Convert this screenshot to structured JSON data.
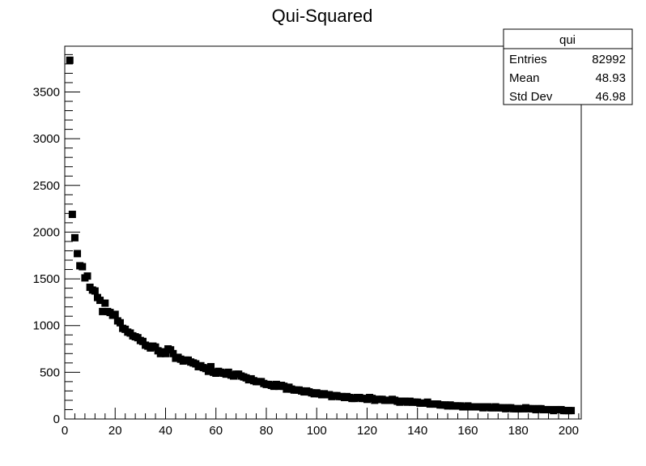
{
  "chart_data": {
    "type": "scatter",
    "title": "Qui-Squared",
    "xlabel": "",
    "ylabel": "",
    "xlim": [
      0,
      205
    ],
    "ylim": [
      0,
      3990
    ],
    "x_ticks": [
      0,
      20,
      40,
      60,
      80,
      100,
      120,
      140,
      160,
      180,
      200
    ],
    "y_ticks": [
      0,
      500,
      1000,
      1500,
      2000,
      2500,
      3000,
      3500
    ],
    "marker": "square",
    "marker_color": "#000000",
    "grid": false,
    "series": [
      {
        "x": [
          2,
          3,
          4,
          5,
          6,
          7,
          8,
          9,
          10,
          11,
          12,
          13,
          14,
          15,
          16,
          17,
          18,
          19,
          20,
          21,
          22,
          23,
          24,
          25,
          26,
          27,
          28,
          29,
          30,
          31,
          32,
          33,
          34,
          35,
          36,
          37,
          38,
          39,
          40,
          41,
          42,
          43,
          44,
          45,
          46,
          47,
          48,
          49,
          50,
          51,
          52,
          53,
          54,
          55,
          56,
          57,
          58,
          59,
          60,
          61,
          62,
          63,
          64,
          65,
          66,
          67,
          68,
          69,
          70,
          71,
          72,
          73,
          74,
          75,
          76,
          77,
          78,
          79,
          80,
          81,
          82,
          83,
          84,
          85,
          86,
          87,
          88,
          89,
          90,
          91,
          92,
          93,
          94,
          95,
          96,
          97,
          98,
          99,
          100,
          101,
          102,
          103,
          104,
          105,
          106,
          107,
          108,
          109,
          110,
          111,
          112,
          113,
          114,
          115,
          116,
          117,
          118,
          119,
          120,
          121,
          122,
          123,
          124,
          125,
          126,
          127,
          128,
          129,
          130,
          131,
          132,
          133,
          134,
          135,
          136,
          137,
          138,
          139,
          140,
          141,
          142,
          143,
          144,
          145,
          146,
          147,
          148,
          149,
          150,
          151,
          152,
          153,
          154,
          155,
          156,
          157,
          158,
          159,
          160,
          161,
          162,
          163,
          164,
          165,
          166,
          167,
          168,
          169,
          170,
          171,
          172,
          173,
          174,
          175,
          176,
          177,
          178,
          179,
          180,
          181,
          182,
          183,
          184,
          185,
          186,
          187,
          188,
          189,
          190,
          191,
          192,
          193,
          194,
          195,
          196,
          197,
          198,
          199,
          200,
          201
        ],
        "values": [
          3840,
          2190,
          1940,
          1770,
          1640,
          1630,
          1510,
          1530,
          1410,
          1380,
          1370,
          1300,
          1270,
          1150,
          1240,
          1150,
          1140,
          1110,
          1120,
          1050,
          1030,
          970,
          960,
          930,
          920,
          890,
          880,
          870,
          840,
          830,
          790,
          780,
          760,
          780,
          770,
          730,
          700,
          720,
          700,
          750,
          740,
          700,
          650,
          660,
          640,
          620,
          630,
          630,
          610,
          600,
          590,
          560,
          570,
          550,
          540,
          510,
          560,
          500,
          490,
          510,
          500,
          490,
          480,
          500,
          470,
          460,
          480,
          480,
          460,
          450,
          440,
          420,
          430,
          410,
          400,
          400,
          400,
          380,
          370,
          370,
          360,
          350,
          370,
          350,
          360,
          350,
          320,
          340,
          320,
          310,
          310,
          310,
          300,
          290,
          300,
          290,
          280,
          270,
          280,
          270,
          260,
          270,
          260,
          260,
          240,
          250,
          250,
          240,
          240,
          230,
          240,
          230,
          220,
          220,
          230,
          230,
          220,
          220,
          210,
          230,
          220,
          200,
          210,
          210,
          210,
          200,
          200,
          200,
          210,
          200,
          190,
          180,
          190,
          190,
          180,
          190,
          180,
          180,
          180,
          170,
          170,
          170,
          180,
          160,
          160,
          160,
          160,
          150,
          150,
          150,
          140,
          150,
          140,
          140,
          140,
          140,
          130,
          130,
          140,
          130,
          130,
          130,
          130,
          130,
          120,
          130,
          130,
          120,
          120,
          130,
          120,
          120,
          120,
          110,
          120,
          120,
          110,
          110,
          110,
          110,
          110,
          120,
          110,
          110,
          110,
          100,
          110,
          110,
          100,
          100,
          100,
          100,
          90,
          100,
          100,
          100,
          90,
          90,
          90,
          90
        ]
      }
    ],
    "stats_box": {
      "name": "qui",
      "rows": [
        {
          "label": "Entries",
          "value": "82992"
        },
        {
          "label": "Mean",
          "value": "48.93"
        },
        {
          "label": "Std Dev",
          "value": "46.98"
        }
      ]
    }
  }
}
